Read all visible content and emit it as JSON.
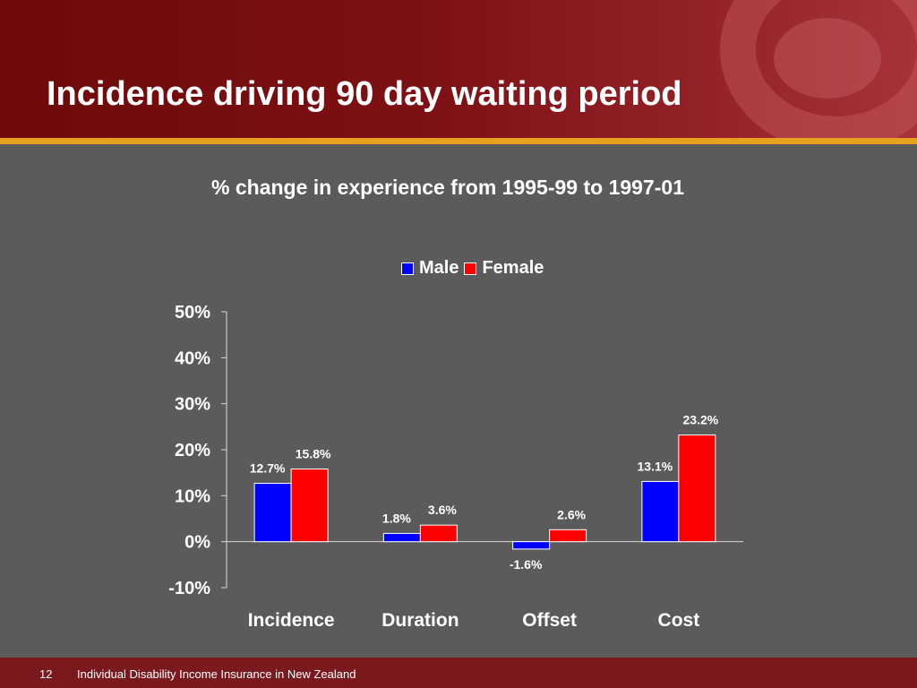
{
  "slide": {
    "title": "Incidence driving 90 day waiting period",
    "page_number": "12",
    "footer_text": "Individual Disability Income Insurance in New Zealand",
    "colors": {
      "header": "#7d1014",
      "accent": "#e8a020",
      "background": "#5b5b5b",
      "footer": "#7a1a1e"
    }
  },
  "chart_data": {
    "type": "bar",
    "title": "% change in experience from 1995-99 to 1997-01",
    "categories": [
      "Incidence",
      "Duration",
      "Offset",
      "Cost"
    ],
    "series": [
      {
        "name": "Male",
        "color": "#0000ff",
        "values": [
          12.7,
          1.8,
          -1.6,
          13.1
        ],
        "labels": [
          "12.7%",
          "1.8%",
          "-1.6%",
          "13.1%"
        ]
      },
      {
        "name": "Female",
        "color": "#ff0000",
        "values": [
          15.8,
          3.6,
          2.6,
          23.2
        ],
        "labels": [
          "15.8%",
          "3.6%",
          "2.6%",
          "23.2%"
        ]
      }
    ],
    "ylim": [
      -10,
      50
    ],
    "yticks": [
      -10,
      0,
      10,
      20,
      30,
      40,
      50
    ],
    "ytick_labels": [
      "-10%",
      "0%",
      "10%",
      "20%",
      "30%",
      "40%",
      "50%"
    ],
    "xlabel": "",
    "ylabel": "",
    "legend_position": "top-center",
    "grid": false
  }
}
